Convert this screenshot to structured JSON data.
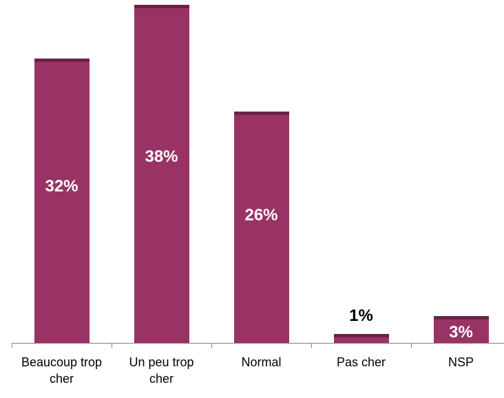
{
  "chart_data": {
    "type": "bar",
    "categories": [
      "Beaucoup trop cher",
      "Un peu trop cher",
      "Normal",
      "Pas cher",
      "NSP"
    ],
    "values": [
      32,
      38,
      26,
      1,
      3
    ],
    "value_labels": [
      "32%",
      "38%",
      "26%",
      "1%",
      "3%"
    ],
    "color": "#993366"
  }
}
